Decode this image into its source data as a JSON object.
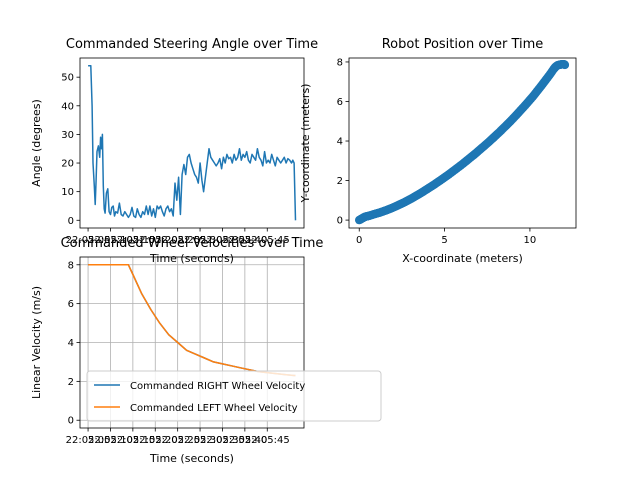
{
  "chart_data": [
    {
      "type": "line",
      "title": "Commanded Steering Angle over Time",
      "xlabel": "Time (seconds)",
      "ylabel": "Angle (degrees)",
      "ylim": [
        -2.7,
        56.7
      ],
      "yticks": [
        0,
        10,
        20,
        30,
        40,
        50
      ],
      "xtick_labels": [
        "22:05:05",
        "22:05:10",
        "22:05:15",
        "22:05:20",
        "22:05:25",
        "22:05:30",
        "22:05:35",
        "22:05:40",
        "22:05:45"
      ],
      "x_seconds": [
        0,
        0.6,
        0.9,
        1.1,
        1.4,
        1.6,
        1.8,
        2.0,
        2.3,
        2.6,
        2.8,
        3.0,
        3.2,
        3.4,
        3.6,
        3.8,
        4.1,
        4.4,
        4.7,
        5.0,
        5.3,
        5.6,
        5.9,
        6.2,
        6.6,
        7.0,
        7.4,
        7.8,
        8.2,
        8.6,
        9.0,
        9.4,
        9.8,
        10.2,
        10.6,
        11.0,
        11.4,
        11.8,
        12.2,
        12.6,
        13.0,
        13.4,
        13.8,
        14.2,
        14.6,
        15.0,
        15.4,
        15.8,
        16.2,
        16.6,
        17.0,
        17.4,
        17.8,
        18.2,
        18.6,
        19.0,
        19.4,
        19.8,
        20.2,
        20.6,
        21.0,
        21.4,
        21.8,
        22.2,
        22.6,
        23.0,
        23.4,
        23.8,
        24.2,
        24.6,
        25.0,
        25.4,
        25.8,
        26.2,
        26.6,
        27.0,
        27.4,
        27.8,
        28.2,
        28.6,
        29.0,
        29.4,
        29.8,
        30.2,
        30.6,
        31.0,
        31.4,
        31.8,
        32.2,
        32.6,
        33.0,
        33.4,
        33.8,
        34.2,
        34.6,
        35.0,
        35.4,
        35.8,
        36.2,
        36.6,
        37.0,
        37.4,
        37.8,
        38.2,
        38.6,
        39.0,
        39.4,
        39.8,
        40.2,
        40.6,
        41.0,
        41.4,
        41.8,
        42.2,
        42.6,
        43.0,
        43.4,
        43.8,
        44.2,
        44.6,
        45.0,
        45.4,
        45.7,
        46.0,
        46.3
      ],
      "series": [
        {
          "name": "",
          "color": "#1f77b4",
          "values": [
            54,
            54,
            40,
            20,
            12,
            5.5,
            14,
            24,
            26,
            22,
            29,
            25,
            30,
            12,
            4,
            2.5,
            9.5,
            11,
            3,
            2,
            4.5,
            5,
            1.5,
            3,
            2.5,
            6,
            2,
            1.5,
            3,
            2,
            1,
            2,
            4.5,
            1.5,
            1,
            4,
            2,
            1,
            3,
            2,
            5,
            2,
            5,
            1.5,
            4,
            1,
            5,
            4,
            5,
            3,
            1.5,
            4,
            5,
            3,
            4,
            1.5,
            13,
            7,
            15,
            2,
            16,
            19.5,
            16,
            22,
            23,
            20,
            18,
            16,
            15,
            13,
            20,
            14,
            10,
            15,
            20,
            25,
            22,
            21,
            20,
            19,
            20,
            21.5,
            18,
            22,
            20,
            23,
            21.5,
            22,
            20,
            23,
            21,
            22,
            25,
            21,
            23,
            22,
            24,
            21,
            20,
            23,
            22,
            21,
            25,
            22,
            21,
            19,
            24,
            20,
            21,
            20,
            23,
            21,
            19,
            22,
            21,
            20,
            21,
            22,
            20,
            21.5,
            21,
            20,
            21,
            20,
            0
          ]
        }
      ]
    },
    {
      "type": "scatter",
      "title": "Robot Position over Time",
      "xlabel": "X-coordinate (meters)",
      "ylabel": "Y-coordinate (meters)",
      "xlim": [
        -0.6,
        12.7
      ],
      "ylim": [
        -0.4,
        8.2
      ],
      "xticks": [
        0,
        5,
        10
      ],
      "yticks": [
        0,
        2,
        4,
        6,
        8
      ],
      "curve_x": [
        0,
        0.1,
        0.2,
        0.3,
        0.4,
        0.5,
        0.6,
        0.8,
        1.0,
        1.2,
        1.4,
        1.6,
        1.8,
        2.0,
        2.2,
        2.4,
        2.6,
        2.8,
        3.0,
        3.2,
        3.4,
        3.6,
        3.8,
        4.0,
        4.2,
        4.4,
        4.6,
        4.8,
        5.0,
        5.2,
        5.4,
        5.6,
        5.8,
        6.0,
        6.2,
        6.4,
        6.6,
        6.8,
        7.0,
        7.2,
        7.4,
        7.6,
        7.8,
        8.0,
        8.2,
        8.4,
        8.6,
        8.8,
        9.0,
        9.2,
        9.4,
        9.6,
        9.8,
        10.0,
        10.2,
        10.4,
        10.6,
        10.8,
        11.0,
        11.2,
        11.4,
        11.5,
        11.6,
        11.7,
        11.8,
        11.9,
        12.0,
        12.05
      ],
      "curve_y": [
        0,
        0.05,
        0.1,
        0.15,
        0.18,
        0.2,
        0.22,
        0.28,
        0.33,
        0.38,
        0.44,
        0.5,
        0.57,
        0.64,
        0.72,
        0.8,
        0.88,
        0.97,
        1.06,
        1.16,
        1.26,
        1.36,
        1.47,
        1.58,
        1.69,
        1.8,
        1.92,
        2.04,
        2.16,
        2.28,
        2.41,
        2.54,
        2.67,
        2.8,
        2.94,
        3.08,
        3.22,
        3.36,
        3.51,
        3.66,
        3.81,
        3.96,
        4.12,
        4.28,
        4.44,
        4.61,
        4.78,
        4.95,
        5.13,
        5.31,
        5.5,
        5.69,
        5.88,
        6.08,
        6.28,
        6.5,
        6.72,
        6.94,
        7.17,
        7.4,
        7.65,
        7.75,
        7.82,
        7.85,
        7.87,
        7.88,
        7.88,
        7.85
      ],
      "series": [
        {
          "name": "",
          "color": "#1f77b4"
        }
      ]
    },
    {
      "type": "line",
      "title": "Commanded Wheel Velocities over Time",
      "xlabel": "Time (seconds)",
      "ylabel": "Linear Velocity (m/s)",
      "ylim": [
        -0.4,
        8.4
      ],
      "yticks": [
        0,
        2,
        4,
        6,
        8
      ],
      "xtick_labels": [
        "22:05:05",
        "22:05:10",
        "22:05:15",
        "22:05:20",
        "22:05:25",
        "22:05:30",
        "22:05:35",
        "22:05:40",
        "22:05:45"
      ],
      "grid": true,
      "legend_position": "lower-left",
      "x_seconds": [
        0,
        2,
        4,
        6,
        8,
        9,
        10,
        12,
        14,
        16,
        18,
        20,
        22,
        24,
        26,
        28,
        30,
        32,
        34,
        36,
        38,
        40,
        42,
        44,
        46,
        46.3
      ],
      "series": [
        {
          "name": "Commanded RIGHT Wheel Velocity",
          "color": "#1f77b4",
          "values": [
            8,
            8,
            8,
            8,
            8,
            8,
            7.5,
            6.5,
            5.7,
            5.0,
            4.4,
            4.0,
            3.6,
            3.4,
            3.2,
            3.0,
            2.9,
            2.8,
            2.7,
            2.6,
            2.5,
            2.45,
            2.4,
            2.35,
            2.3,
            2.3
          ]
        },
        {
          "name": "Commanded LEFT Wheel Velocity",
          "color": "#ff7f0e",
          "values": [
            8,
            8,
            8,
            8,
            8,
            8,
            7.5,
            6.5,
            5.7,
            5.0,
            4.4,
            4.0,
            3.6,
            3.4,
            3.2,
            3.0,
            2.9,
            2.8,
            2.7,
            2.6,
            2.5,
            2.45,
            2.4,
            2.35,
            2.3,
            2.3
          ]
        }
      ]
    }
  ]
}
